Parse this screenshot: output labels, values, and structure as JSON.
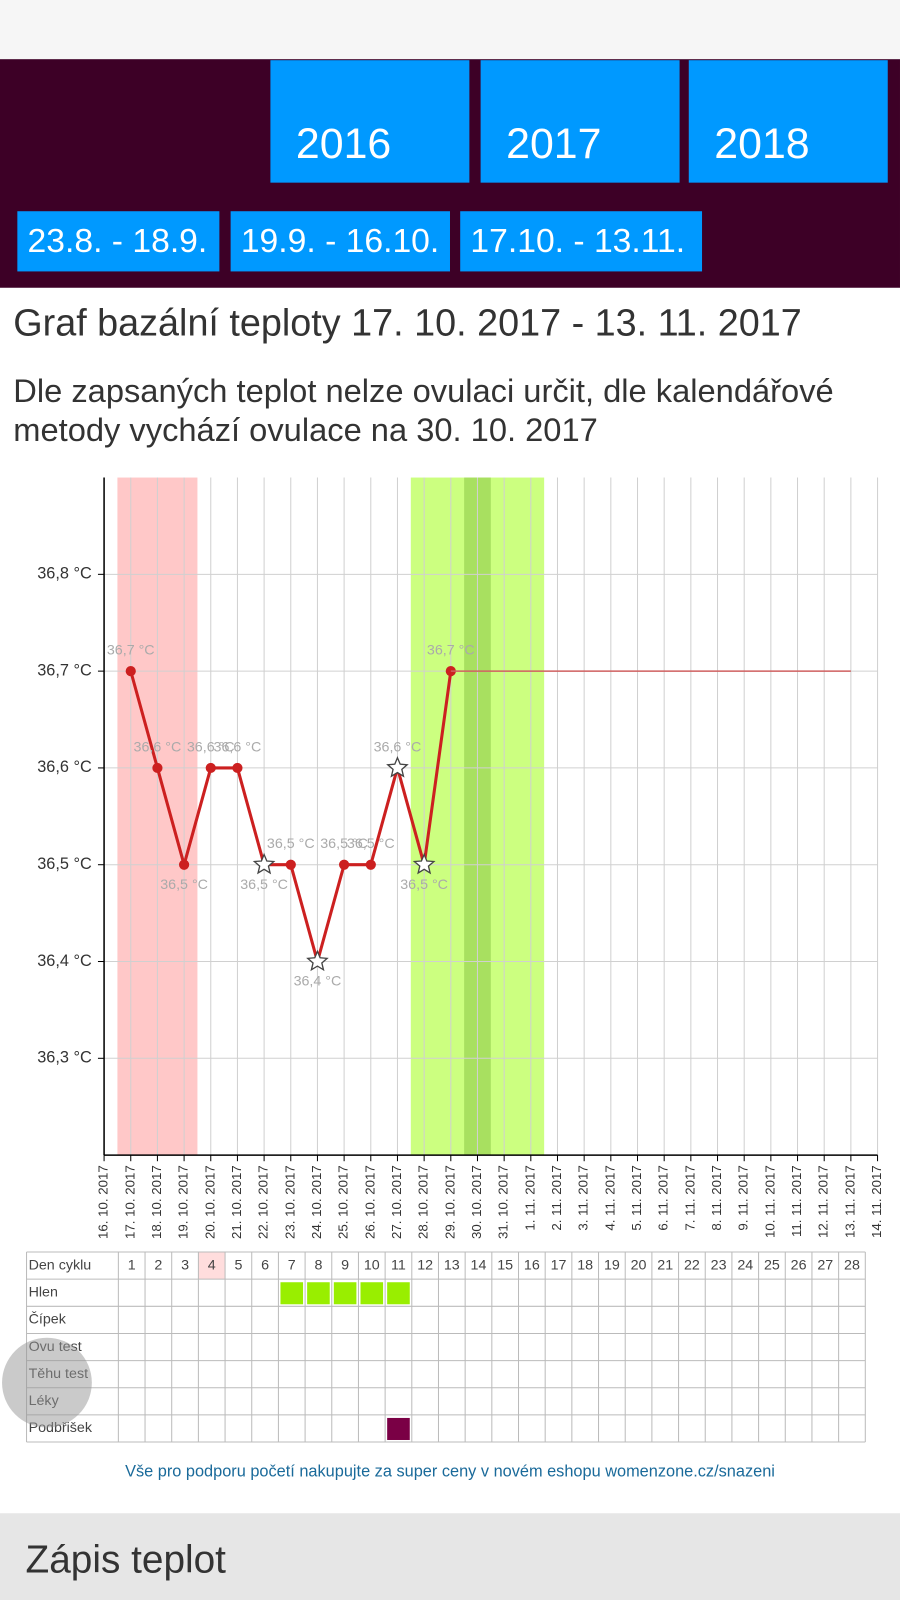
{
  "header": {
    "years": [
      "2016",
      "2017",
      "2018"
    ],
    "periods": [
      "23.8. - 18.9.",
      "19.9. - 16.10.",
      "17.10. - 13.11."
    ]
  },
  "title": "Graf bazální teploty 17. 10. 2017 - 13. 11. 2017",
  "note": "Dle zapsaných teplot nelze ovulaci určit, dle kalendářové metody vychází ovulace na 30. 10. 2017",
  "chart_data": {
    "type": "line",
    "x": [
      "16. 10. 2017",
      "17. 10. 2017",
      "18. 10. 2017",
      "19. 10. 2017",
      "20. 10. 2017",
      "21. 10. 2017",
      "22. 10. 2017",
      "23. 10. 2017",
      "24. 10. 2017",
      "25. 10. 2017",
      "26. 10. 2017",
      "27. 10. 2017",
      "28. 10. 2017",
      "29. 10. 2017",
      "30. 10. 2017",
      "31. 10. 2017",
      "1. 11. 2017",
      "2. 11. 2017",
      "3. 11. 2017",
      "4. 11. 2017",
      "5. 11. 2017",
      "6. 11. 2017",
      "7. 11. 2017",
      "8. 11. 2017",
      "9. 11. 2017",
      "10. 11. 2017",
      "11. 11. 2017",
      "12. 11. 2017",
      "13. 11. 2017",
      "14. 11. 2017"
    ],
    "ylim": [
      36.2,
      36.9
    ],
    "yticks": [
      {
        "value": 36.3,
        "label": "36,3 °C"
      },
      {
        "value": 36.4,
        "label": "36,4 °C"
      },
      {
        "value": 36.5,
        "label": "36,5 °C"
      },
      {
        "value": 36.6,
        "label": "36,6 °C"
      },
      {
        "value": 36.7,
        "label": "36,7 °C"
      },
      {
        "value": 36.8,
        "label": "36,8 °C"
      }
    ],
    "grid": true,
    "series": [
      {
        "color": "#cc2020",
        "values": [
          null,
          36.7,
          36.6,
          36.5,
          36.6,
          36.6,
          36.5,
          36.5,
          36.4,
          36.5,
          36.5,
          36.6,
          36.5,
          36.7,
          null,
          null,
          null,
          null,
          null,
          null,
          null,
          null,
          null,
          null,
          null,
          null,
          null,
          null,
          null,
          null
        ],
        "value_labels": [
          null,
          "36,7 °C",
          "36,6 °C",
          "36,5 °C",
          "36,6 °C",
          "36,6 °C",
          "36,5 °C",
          "36,5 °C",
          "36,4 °C",
          "36,5 °C",
          "36,5 °C",
          "36,6 °C",
          "36,5 °C",
          "36,7 °C",
          null,
          null,
          null,
          null,
          null,
          null,
          null,
          null,
          null,
          null,
          null,
          null,
          null,
          null,
          null,
          null
        ],
        "markers": [
          null,
          "circle",
          "circle",
          "circle",
          "circle",
          "circle",
          "star",
          "circle",
          "star",
          "circle",
          "circle",
          "star",
          "star",
          "circle",
          null,
          null,
          null,
          null,
          null,
          null,
          null,
          null,
          null,
          null,
          null,
          null,
          null,
          null,
          null,
          null
        ]
      },
      {
        "color": "#d06060",
        "values": [
          null,
          null,
          null,
          null,
          null,
          null,
          null,
          null,
          null,
          null,
          null,
          null,
          null,
          36.7,
          36.7,
          36.7,
          36.7,
          36.7,
          36.7,
          36.7,
          36.7,
          36.7,
          36.7,
          36.7,
          36.7,
          36.7,
          36.7,
          36.7,
          36.7,
          null
        ]
      }
    ],
    "bands": [
      {
        "start": 1,
        "end": 3,
        "color": "#ffc8c8"
      },
      {
        "start": 12,
        "end": 16,
        "color": "#ccff80"
      },
      {
        "start": 14,
        "end": 14,
        "color": "#a8e060"
      }
    ]
  },
  "cycle_table": {
    "header": "Den cyklu",
    "days": [
      "1",
      "2",
      "3",
      "4",
      "5",
      "6",
      "7",
      "8",
      "9",
      "10",
      "11",
      "12",
      "13",
      "14",
      "15",
      "16",
      "17",
      "18",
      "19",
      "20",
      "21",
      "22",
      "23",
      "24",
      "25",
      "26",
      "27",
      "28"
    ],
    "highlight_day": 4,
    "rows": [
      {
        "label": "Hlen",
        "marked": [
          7,
          8,
          9,
          10,
          11
        ],
        "color": "#99ee00"
      },
      {
        "label": "Čípek",
        "marked": []
      },
      {
        "label": "Ovu test",
        "marked": []
      },
      {
        "label": "Těhu test",
        "marked": []
      },
      {
        "label": "Léky",
        "marked": []
      },
      {
        "label": "Podbřišek",
        "marked": [
          11
        ],
        "color": "#7a0045"
      }
    ]
  },
  "footer_link": "Vše pro podporu početí nakupujte za super ceny v novém eshopu womenzone.cz/snazeni",
  "section_title": "Zápis teplot"
}
